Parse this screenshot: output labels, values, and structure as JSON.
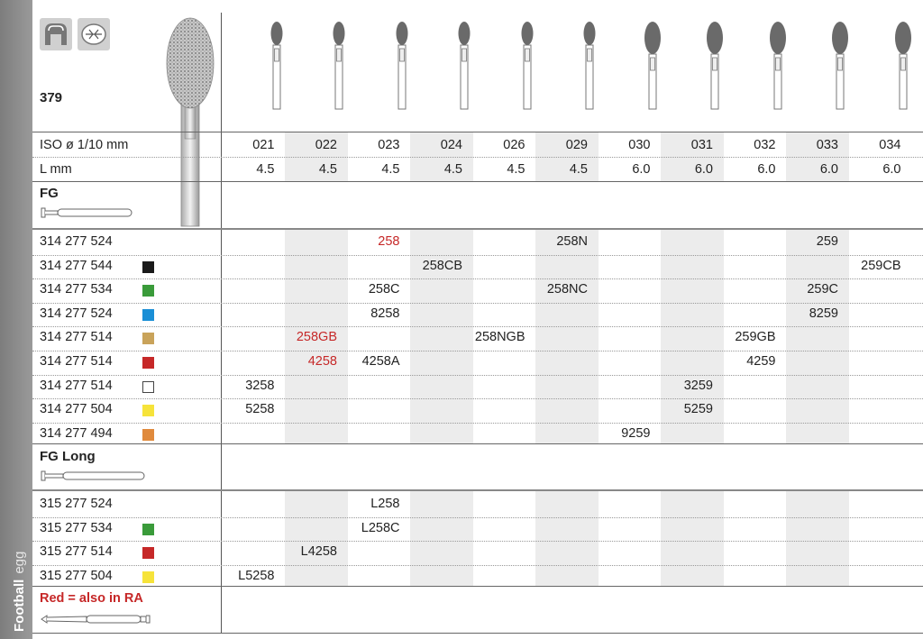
{
  "sidebar": {
    "shape_label": "Football",
    "shape_sub": "egg"
  },
  "header": {
    "number": "379"
  },
  "iso": {
    "label": "ISO ø 1/10 mm",
    "values": [
      "021",
      "022",
      "023",
      "024",
      "026",
      "029",
      "030",
      "031",
      "032",
      "033",
      "034"
    ]
  },
  "length": {
    "label": "L mm",
    "values": [
      "4.5",
      "4.5",
      "4.5",
      "4.5",
      "4.5",
      "4.5",
      "6.0",
      "6.0",
      "6.0",
      "6.0",
      "6.0"
    ]
  },
  "sections": {
    "fg": "FG",
    "fg_long": "FG Long",
    "red_note": "Red = also in RA"
  },
  "colors": {
    "black": "#1a1a1a",
    "green": "#3a9b3a",
    "blue": "#1a8fd6",
    "gold": "#c9a35a",
    "red": "#c62828",
    "white": "#ffffff",
    "yellow": "#f6e33a",
    "orange": "#e08a3c"
  },
  "rows": [
    {
      "code": "314 277 524",
      "swatch": "",
      "cells": {
        "2": "258",
        "5": "258N",
        "9": "259"
      },
      "red": [
        "2"
      ]
    },
    {
      "code": "314 277 544",
      "swatch": "black",
      "cells": {
        "3": "258CB",
        "10": "259CB"
      },
      "red": []
    },
    {
      "code": "314 277 534",
      "swatch": "green",
      "cells": {
        "2": "258C",
        "5": "258NC",
        "9": "259C"
      },
      "red": []
    },
    {
      "code": "314 277 524",
      "swatch": "blue",
      "cells": {
        "2": "8258",
        "9": "8259"
      },
      "red": []
    },
    {
      "code": "314 277 514",
      "swatch": "gold",
      "cells": {
        "1": "258GB",
        "4": "258NGB",
        "8": "259GB"
      },
      "red": [
        "1"
      ]
    },
    {
      "code": "314 277 514",
      "swatch": "red",
      "cells": {
        "1": "4258",
        "2": "4258A",
        "8": "4259"
      },
      "red": [
        "1"
      ]
    },
    {
      "code": "314 277 514",
      "swatch": "white",
      "cells": {
        "0": "3258",
        "7": "3259"
      },
      "red": []
    },
    {
      "code": "314 277 504",
      "swatch": "yellow",
      "cells": {
        "0": "5258",
        "7": "5259"
      },
      "red": []
    },
    {
      "code": "314 277 494",
      "swatch": "orange",
      "cells": {
        "6": "9259"
      },
      "red": []
    }
  ],
  "rows_long": [
    {
      "code": "315 277 524",
      "swatch": "",
      "cells": {
        "2": "L258"
      },
      "red": []
    },
    {
      "code": "315 277 534",
      "swatch": "green",
      "cells": {
        "2": "L258C"
      },
      "red": []
    },
    {
      "code": "315 277 514",
      "swatch": "red",
      "cells": {
        "1": "L4258"
      },
      "red": []
    },
    {
      "code": "315 277 504",
      "swatch": "yellow",
      "cells": {
        "0": "L5258"
      },
      "red": []
    }
  ]
}
